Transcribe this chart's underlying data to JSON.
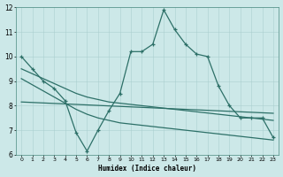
{
  "x": [
    0,
    1,
    2,
    3,
    4,
    5,
    6,
    7,
    8,
    9,
    10,
    11,
    12,
    13,
    14,
    15,
    16,
    17,
    18,
    19,
    20,
    21,
    22,
    23
  ],
  "y_main": [
    10.0,
    9.5,
    9.0,
    8.7,
    8.2,
    6.9,
    6.15,
    7.0,
    7.8,
    8.5,
    10.2,
    10.2,
    10.5,
    11.9,
    11.1,
    10.5,
    10.1,
    10.0,
    8.8,
    8.0,
    7.5,
    7.5,
    7.5,
    6.7
  ],
  "y_flat": [
    8.15,
    8.13,
    8.11,
    8.09,
    8.07,
    8.05,
    8.03,
    8.01,
    7.99,
    7.97,
    7.95,
    7.93,
    7.91,
    7.89,
    7.87,
    7.85,
    7.83,
    7.81,
    7.79,
    7.77,
    7.75,
    7.73,
    7.71,
    7.69
  ],
  "y_upper": [
    9.5,
    9.3,
    9.1,
    8.9,
    8.7,
    8.5,
    8.35,
    8.25,
    8.15,
    8.1,
    8.05,
    8.0,
    7.95,
    7.9,
    7.85,
    7.8,
    7.75,
    7.7,
    7.65,
    7.6,
    7.55,
    7.5,
    7.45,
    7.4
  ],
  "y_lower": [
    9.1,
    8.85,
    8.6,
    8.35,
    8.1,
    7.85,
    7.65,
    7.5,
    7.4,
    7.3,
    7.25,
    7.2,
    7.15,
    7.1,
    7.05,
    7.0,
    6.95,
    6.9,
    6.85,
    6.8,
    6.75,
    6.7,
    6.65,
    6.6
  ],
  "bg_color": "#cce8e8",
  "line_color": "#2d7068",
  "grid_color": "#aacfcf",
  "xlabel": "Humidex (Indice chaleur)",
  "ylim": [
    6,
    12
  ],
  "xlim": [
    -0.5,
    23.5
  ]
}
